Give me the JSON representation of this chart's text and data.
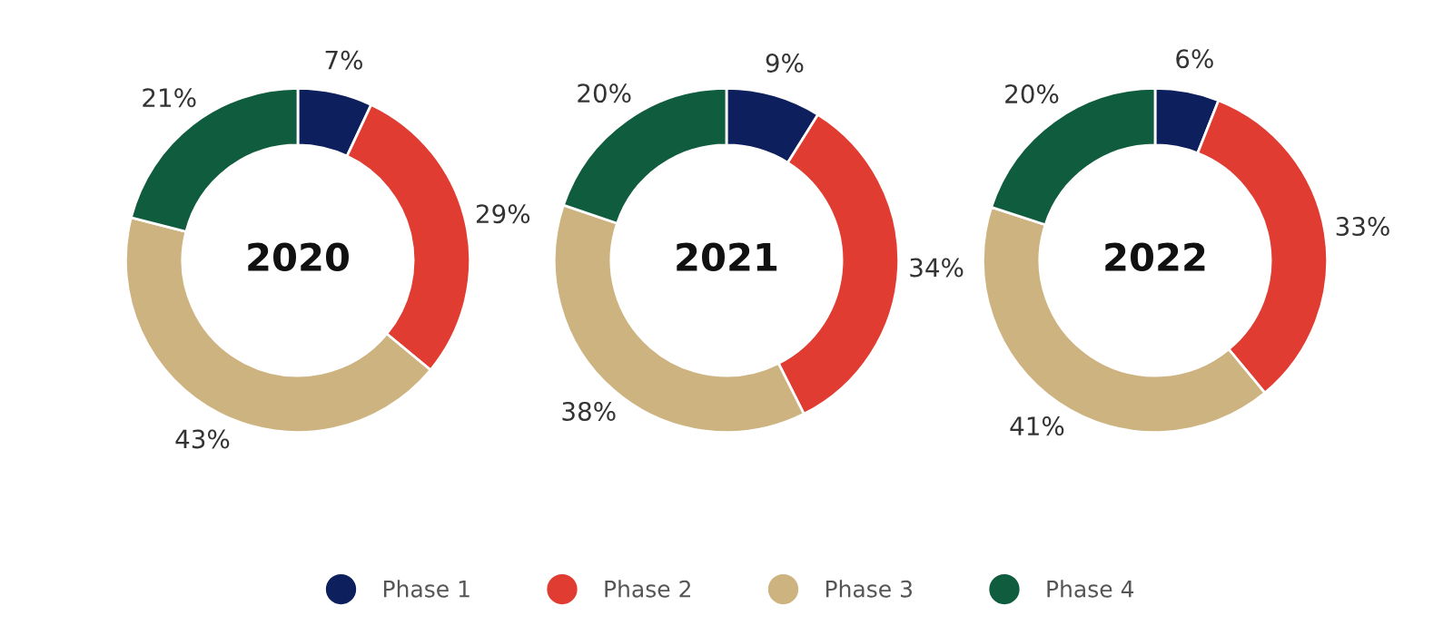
{
  "chart_data": [
    {
      "type": "donut",
      "title": "2020",
      "categories": [
        "Phase 1",
        "Phase 2",
        "Phase 3",
        "Phase 4"
      ],
      "values": [
        7,
        29,
        43,
        21
      ],
      "value_labels": [
        "7%",
        "29%",
        "43%",
        "21%"
      ],
      "colors": [
        "#0d1f5c",
        "#e03c31",
        "#cdb380",
        "#0f5c3f"
      ],
      "legend": "bottom"
    },
    {
      "type": "donut",
      "title": "2021",
      "categories": [
        null,
        null,
        null,
        null
      ],
      "values": [
        9,
        34,
        38,
        20
      ],
      "value_labels": [
        "9%",
        "34%",
        "38%",
        "20%"
      ],
      "colors": [
        "#0d1f5c",
        "#e03c31",
        "#cdb380",
        "#0f5c3f"
      ]
    },
    {
      "type": "donut",
      "title": "2022",
      "categories": [
        null,
        null,
        null,
        null
      ],
      "values": [
        6,
        33,
        41,
        20
      ],
      "value_labels": [
        "6%",
        "33%",
        "41%",
        "20%"
      ],
      "colors": [
        "#0d1f5c",
        "#e03c31",
        "#cdb380",
        "#0f5c3f"
      ]
    }
  ]
}
